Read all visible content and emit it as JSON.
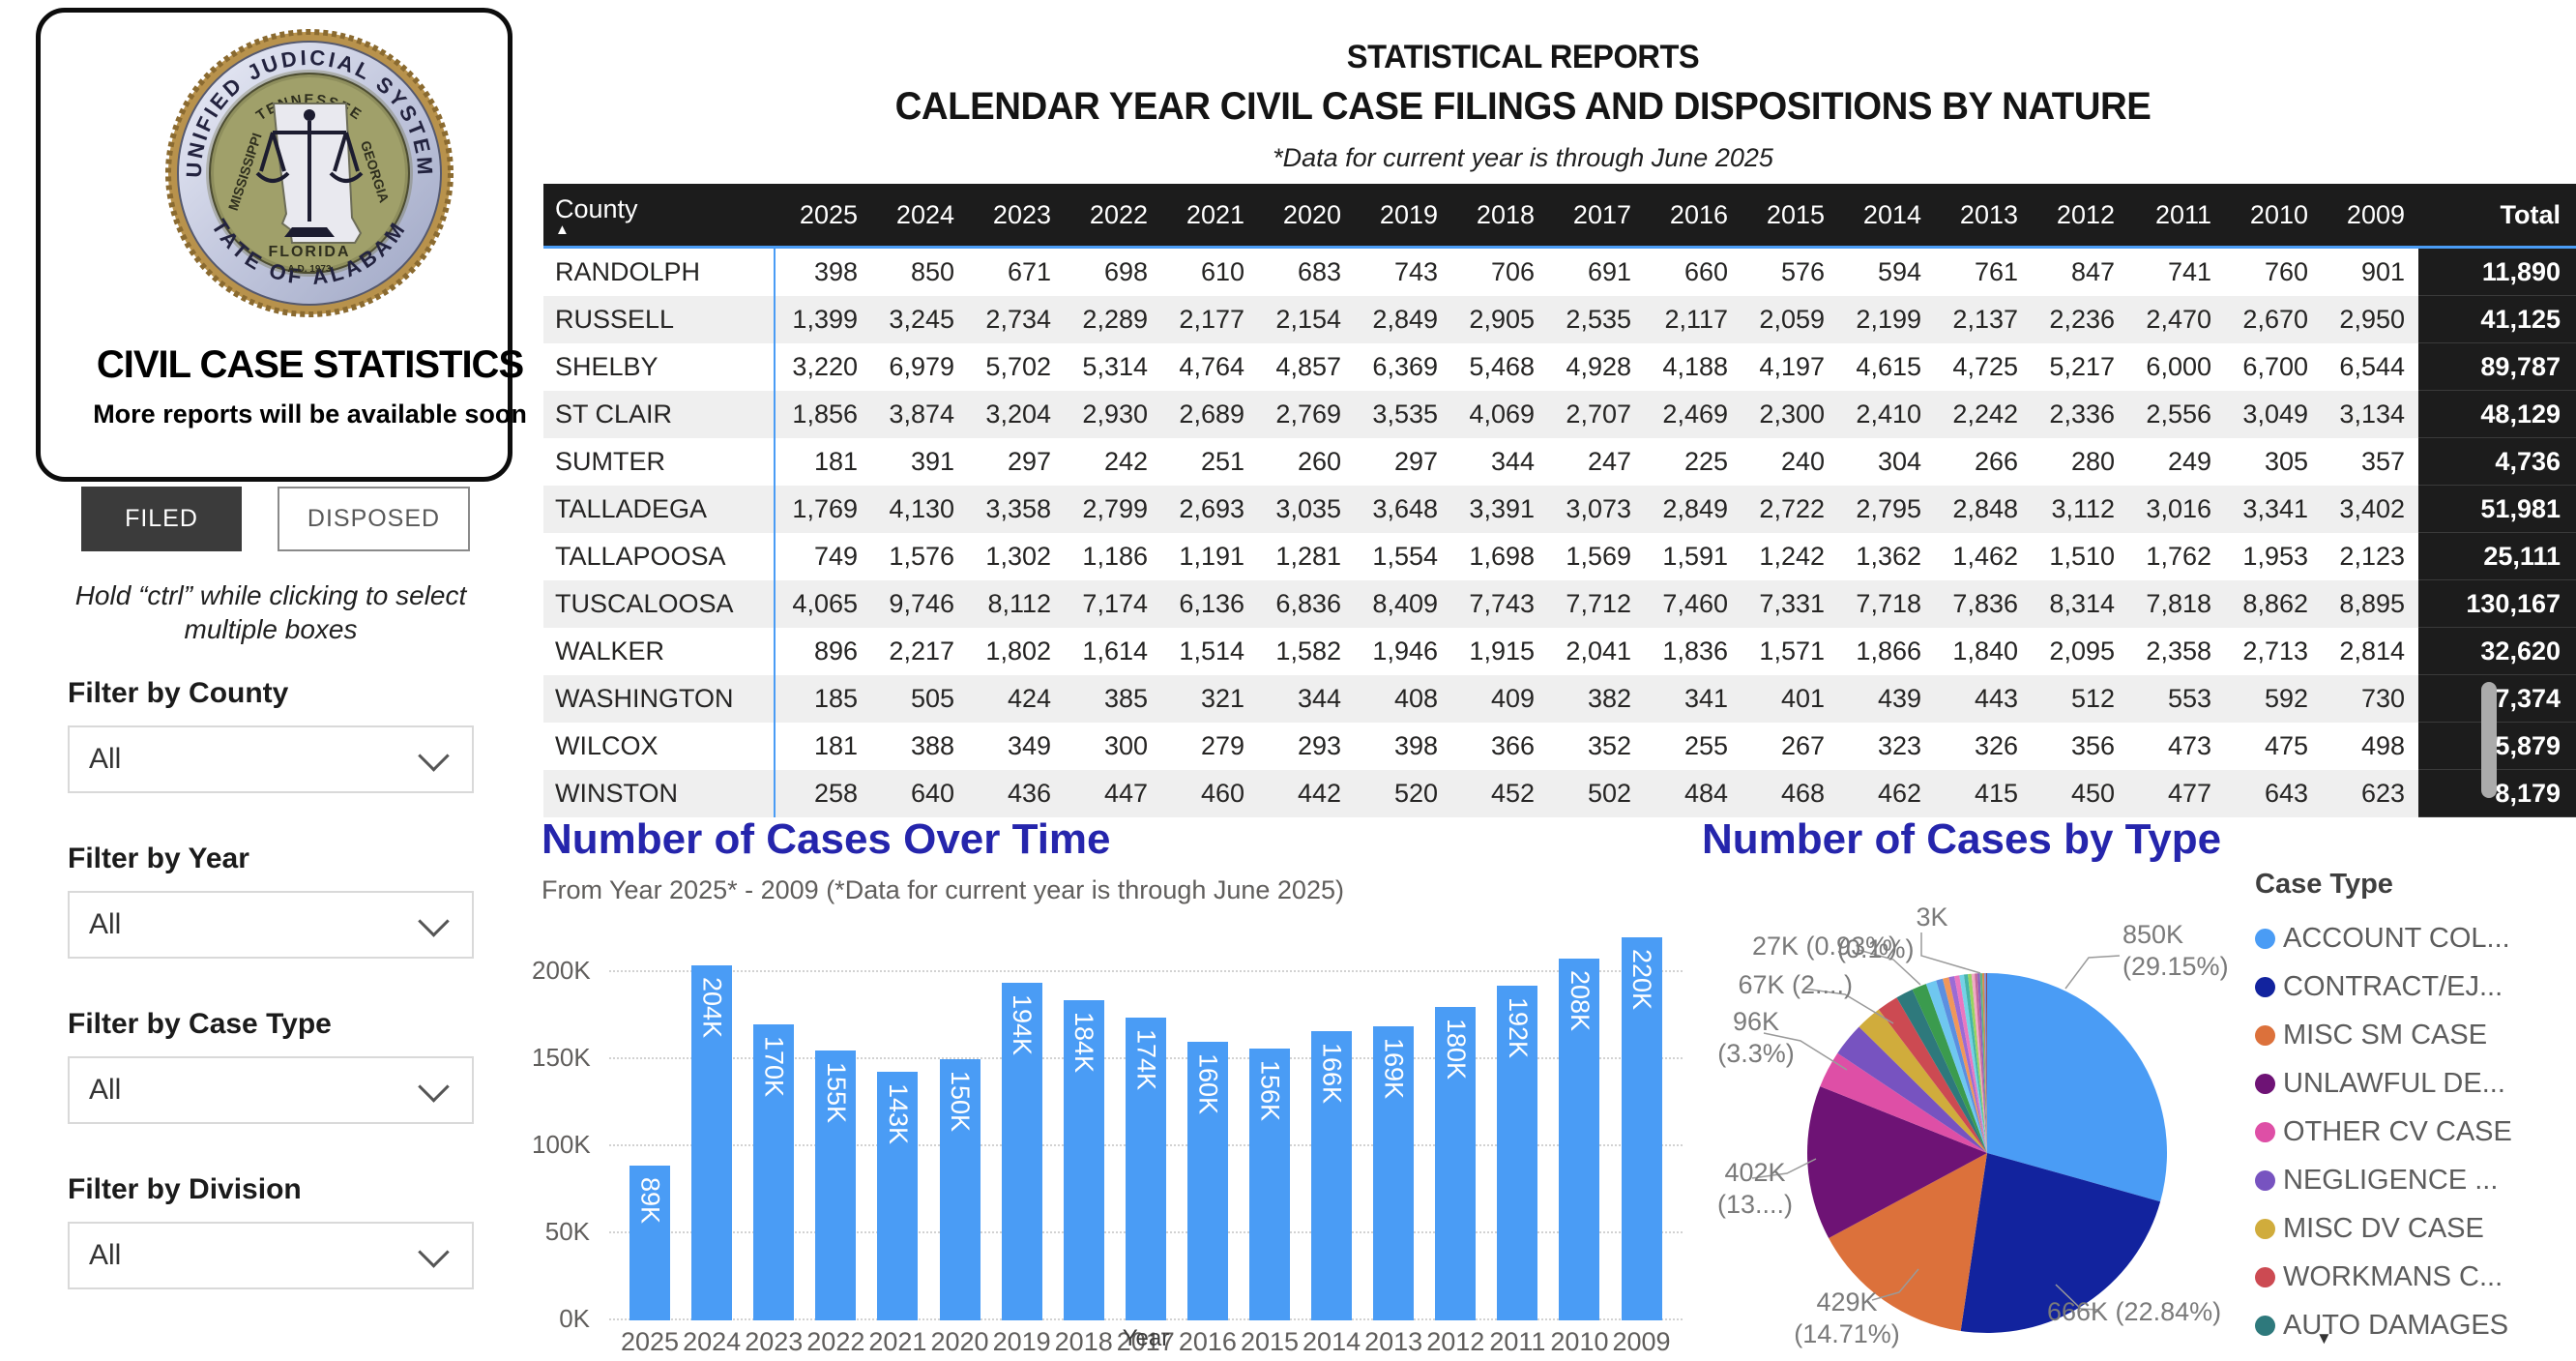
{
  "theme": {
    "accent_blue": "#4a9cf5",
    "title_blue": "#2525ac",
    "table_header_bg": "#1c1c1c"
  },
  "header": {
    "title1": "STATISTICAL REPORTS",
    "title2": "CALENDAR YEAR CIVIL CASE FILINGS AND DISPOSITIONS BY NATURE",
    "note": "*Data for current year is through June 2025"
  },
  "sidebar": {
    "logo": {
      "seal_top": "UNIFIED JUDICIAL SYSTEM",
      "seal_bottom": "STATE OF ALABAMA",
      "seal_tennessee": "TENNESSEE",
      "seal_georgia": "GEORGIA",
      "seal_mississippi": "MISSISSIPPI",
      "seal_florida": "FLORIDA",
      "seal_year": "A.D. 1973",
      "title": "CIVIL CASE STATISTICS",
      "subtitle": "More reports will be available soon"
    },
    "buttons": {
      "filed": "FILED",
      "disposed": "DISPOSED"
    },
    "hint_line1": "Hold “ctrl” while clicking to select",
    "hint_line2": "multiple boxes",
    "filters": [
      {
        "label": "Filter by County",
        "value": "All"
      },
      {
        "label": "Filter by Year",
        "value": "All"
      },
      {
        "label": "Filter by Case Type",
        "value": "All"
      },
      {
        "label": "Filter by Division",
        "value": "All"
      }
    ]
  },
  "table": {
    "sort_indicator": "▲",
    "columns": [
      "County",
      "2025",
      "2024",
      "2023",
      "2022",
      "2021",
      "2020",
      "2019",
      "2018",
      "2017",
      "2016",
      "2015",
      "2014",
      "2013",
      "2012",
      "2011",
      "2010",
      "2009",
      "Total"
    ],
    "rows": [
      {
        "county": "RANDOLPH",
        "values": [
          "398",
          "850",
          "671",
          "698",
          "610",
          "683",
          "743",
          "706",
          "691",
          "660",
          "576",
          "594",
          "761",
          "847",
          "741",
          "760",
          "901"
        ],
        "total": "11,890"
      },
      {
        "county": "RUSSELL",
        "values": [
          "1,399",
          "3,245",
          "2,734",
          "2,289",
          "2,177",
          "2,154",
          "2,849",
          "2,905",
          "2,535",
          "2,117",
          "2,059",
          "2,199",
          "2,137",
          "2,236",
          "2,470",
          "2,670",
          "2,950"
        ],
        "total": "41,125"
      },
      {
        "county": "SHELBY",
        "values": [
          "3,220",
          "6,979",
          "5,702",
          "5,314",
          "4,764",
          "4,857",
          "6,369",
          "5,468",
          "4,928",
          "4,188",
          "4,197",
          "4,615",
          "4,725",
          "5,217",
          "6,000",
          "6,700",
          "6,544"
        ],
        "total": "89,787"
      },
      {
        "county": "ST CLAIR",
        "values": [
          "1,856",
          "3,874",
          "3,204",
          "2,930",
          "2,689",
          "2,769",
          "3,535",
          "4,069",
          "2,707",
          "2,469",
          "2,300",
          "2,410",
          "2,242",
          "2,336",
          "2,556",
          "3,049",
          "3,134"
        ],
        "total": "48,129"
      },
      {
        "county": "SUMTER",
        "values": [
          "181",
          "391",
          "297",
          "242",
          "251",
          "260",
          "297",
          "344",
          "247",
          "225",
          "240",
          "304",
          "266",
          "280",
          "249",
          "305",
          "357"
        ],
        "total": "4,736"
      },
      {
        "county": "TALLADEGA",
        "values": [
          "1,769",
          "4,130",
          "3,358",
          "2,799",
          "2,693",
          "3,035",
          "3,648",
          "3,391",
          "3,073",
          "2,849",
          "2,722",
          "2,795",
          "2,848",
          "3,112",
          "3,016",
          "3,341",
          "3,402"
        ],
        "total": "51,981"
      },
      {
        "county": "TALLAPOOSA",
        "values": [
          "749",
          "1,576",
          "1,302",
          "1,186",
          "1,191",
          "1,281",
          "1,554",
          "1,698",
          "1,569",
          "1,591",
          "1,242",
          "1,362",
          "1,462",
          "1,510",
          "1,762",
          "1,953",
          "2,123"
        ],
        "total": "25,111"
      },
      {
        "county": "TUSCALOOSA",
        "values": [
          "4,065",
          "9,746",
          "8,112",
          "7,174",
          "6,136",
          "6,836",
          "8,409",
          "7,743",
          "7,712",
          "7,460",
          "7,331",
          "7,718",
          "7,836",
          "8,314",
          "7,818",
          "8,862",
          "8,895"
        ],
        "total": "130,167"
      },
      {
        "county": "WALKER",
        "values": [
          "896",
          "2,217",
          "1,802",
          "1,614",
          "1,514",
          "1,582",
          "1,946",
          "1,915",
          "2,041",
          "1,836",
          "1,571",
          "1,866",
          "1,840",
          "2,095",
          "2,358",
          "2,713",
          "2,814"
        ],
        "total": "32,620"
      },
      {
        "county": "WASHINGTON",
        "values": [
          "185",
          "505",
          "424",
          "385",
          "321",
          "344",
          "408",
          "409",
          "382",
          "341",
          "401",
          "439",
          "443",
          "512",
          "553",
          "592",
          "730"
        ],
        "total": "7,374"
      },
      {
        "county": "WILCOX",
        "values": [
          "181",
          "388",
          "349",
          "300",
          "279",
          "293",
          "398",
          "366",
          "352",
          "255",
          "267",
          "323",
          "326",
          "356",
          "473",
          "475",
          "498"
        ],
        "total": "5,879"
      },
      {
        "county": "WINSTON",
        "values": [
          "258",
          "640",
          "436",
          "447",
          "460",
          "442",
          "520",
          "452",
          "502",
          "484",
          "468",
          "462",
          "415",
          "450",
          "477",
          "643",
          "623"
        ],
        "total": "8,179"
      }
    ]
  },
  "chart_data": [
    {
      "type": "bar",
      "title": "Number of Cases Over Time",
      "subtitle": "From Year 2025* - 2009 (*Data for current year is through June 2025)",
      "categories": [
        "2025",
        "2024",
        "2023",
        "2022",
        "2021",
        "2020",
        "2019",
        "2018",
        "2017",
        "2016",
        "2015",
        "2014",
        "2013",
        "2012",
        "2011",
        "2010",
        "2009"
      ],
      "values": [
        89,
        204,
        170,
        155,
        143,
        150,
        194,
        184,
        174,
        160,
        156,
        166,
        169,
        180,
        192,
        208,
        220
      ],
      "value_labels": [
        "89K",
        "204K",
        "170K",
        "155K",
        "143K",
        "150K",
        "194K",
        "184K",
        "174K",
        "160K",
        "156K",
        "166K",
        "169K",
        "180K",
        "192K",
        "208K",
        "220K"
      ],
      "unit": "thousands",
      "xlabel": "Year",
      "ylabel": "",
      "yticks": [
        "0K",
        "50K",
        "100K",
        "150K",
        "200K"
      ],
      "ylim": [
        0,
        230
      ],
      "grid": "dotted-horizontal",
      "bar_color": "#4a9cf5"
    },
    {
      "type": "pie",
      "title": "Number of Cases by Type",
      "legend_title": "Case Type",
      "legend_position": "right",
      "slices": [
        {
          "name": "ACCOUNT COL...",
          "value": "850K",
          "pct": 29.15,
          "color": "#4a9cf5"
        },
        {
          "name": "CONTRACT/EJ...",
          "value": "666K",
          "pct": 22.84,
          "color": "#12239e"
        },
        {
          "name": "MISC SM CASE",
          "value": "429K",
          "pct": 14.71,
          "color": "#dc713b"
        },
        {
          "name": "UNLAWFUL DE...",
          "value": "402K",
          "pct": 13.79,
          "color": "#6e1375"
        },
        {
          "name": "OTHER CV CASE",
          "value": "96K",
          "pct": 3.3,
          "color": "#de4fa6"
        },
        {
          "name": "NEGLIGENCE ...",
          "value": "",
          "pct": 3.0,
          "color": "#7753c0"
        },
        {
          "name": "MISC DV CASE",
          "value": "67K",
          "pct": 2.3,
          "color": "#d0ac3c"
        },
        {
          "name": "WORKMANS C...",
          "value": "",
          "pct": 1.9,
          "color": "#cc4a52"
        },
        {
          "name": "AUTO DAMAGES",
          "value": "",
          "pct": 1.55,
          "color": "#2e797c"
        }
      ],
      "other_slices": [
        {
          "value": "",
          "pct": 1.3,
          "color": "#3b9b4e"
        },
        {
          "value": "27K",
          "pct": 0.93,
          "color": "#6fc7f0"
        },
        {
          "value": "",
          "pct": 0.6,
          "color": "#5b8fe0"
        },
        {
          "value": "",
          "pct": 0.55,
          "color": "#f0975a"
        },
        {
          "value": "",
          "pct": 0.5,
          "color": "#9b6bd5"
        },
        {
          "value": "",
          "pct": 0.45,
          "color": "#e977c0"
        },
        {
          "value": "",
          "pct": 0.4,
          "color": "#74d2e7"
        },
        {
          "value": "",
          "pct": 0.35,
          "color": "#45b5aa"
        },
        {
          "value": "",
          "pct": 0.32,
          "color": "#99d45f"
        },
        {
          "value": "",
          "pct": 0.28,
          "color": "#f2a9c4"
        },
        {
          "value": "",
          "pct": 0.25,
          "color": "#c36a9b"
        },
        {
          "value": "",
          "pct": 0.22,
          "color": "#8b5fbf"
        },
        {
          "value": "",
          "pct": 0.2,
          "color": "#5fb97e"
        },
        {
          "value": "",
          "pct": 0.18,
          "color": "#d98a4f"
        },
        {
          "value": "",
          "pct": 0.15,
          "color": "#7a8fe0"
        },
        {
          "value": "3K",
          "pct": 0.1,
          "color": "#8a4a5a"
        }
      ],
      "callouts": [
        {
          "lines": [
            "850K",
            "(29.15%)"
          ]
        },
        {
          "lines": [
            "666K (22.84%)"
          ]
        },
        {
          "lines": [
            "429K",
            "(14.71%)"
          ]
        },
        {
          "lines": [
            "402K",
            "(13....)"
          ]
        },
        {
          "lines": [
            "96K",
            "(3.3%)"
          ]
        },
        {
          "lines": [
            "67K (2....)"
          ]
        },
        {
          "lines": [
            "27K (0.93%)"
          ]
        },
        {
          "lines": [
            "3K",
            "(0.1%)"
          ]
        }
      ]
    }
  ]
}
